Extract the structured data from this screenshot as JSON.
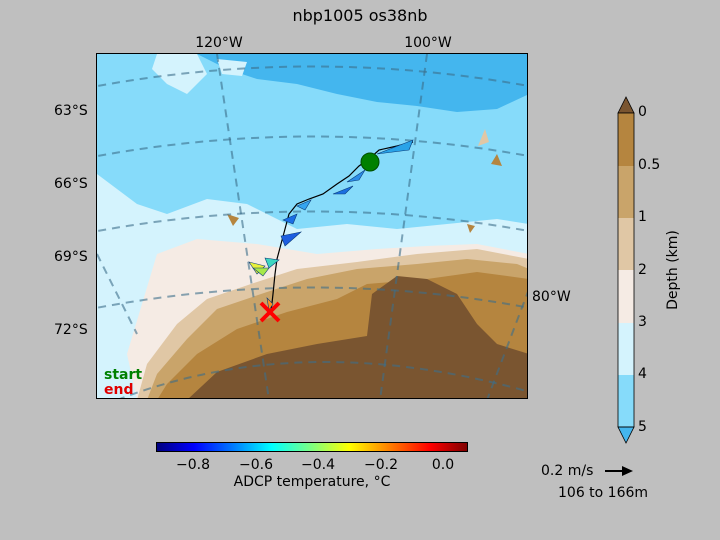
{
  "title": "nbp1005 os38nb",
  "lon_labels_top": [
    "120°W",
    "100°W"
  ],
  "lon_label_right": "80°W",
  "lat_labels": [
    "63°S",
    "66°S",
    "69°S",
    "72°S"
  ],
  "track_legend": {
    "start": "start",
    "end": "end",
    "start_color": "#008000",
    "end_color": "#e00000"
  },
  "depth_colorbar": {
    "label": "Depth (km)",
    "ticks": [
      "0",
      "0.5",
      "1",
      "2",
      "3",
      "4",
      "5"
    ],
    "colors": [
      "#7a5530",
      "#b5853f",
      "#c9a46a",
      "#e0c7a5",
      "#f5ebe4",
      "#d4f3fd",
      "#86dbfa",
      "#44b6ee"
    ]
  },
  "temperature_colorbar": {
    "label": "ADCP temperature, °C",
    "ticks": [
      "−0.8",
      "−0.6",
      "−0.4",
      "−0.2",
      "0.0"
    ]
  },
  "scale_arrow": {
    "speed": "0.2 m/s",
    "depth_range": "106 to 166m"
  },
  "markers": {
    "start_icon": "green-circle-icon",
    "end_icon": "red-x-icon"
  }
}
